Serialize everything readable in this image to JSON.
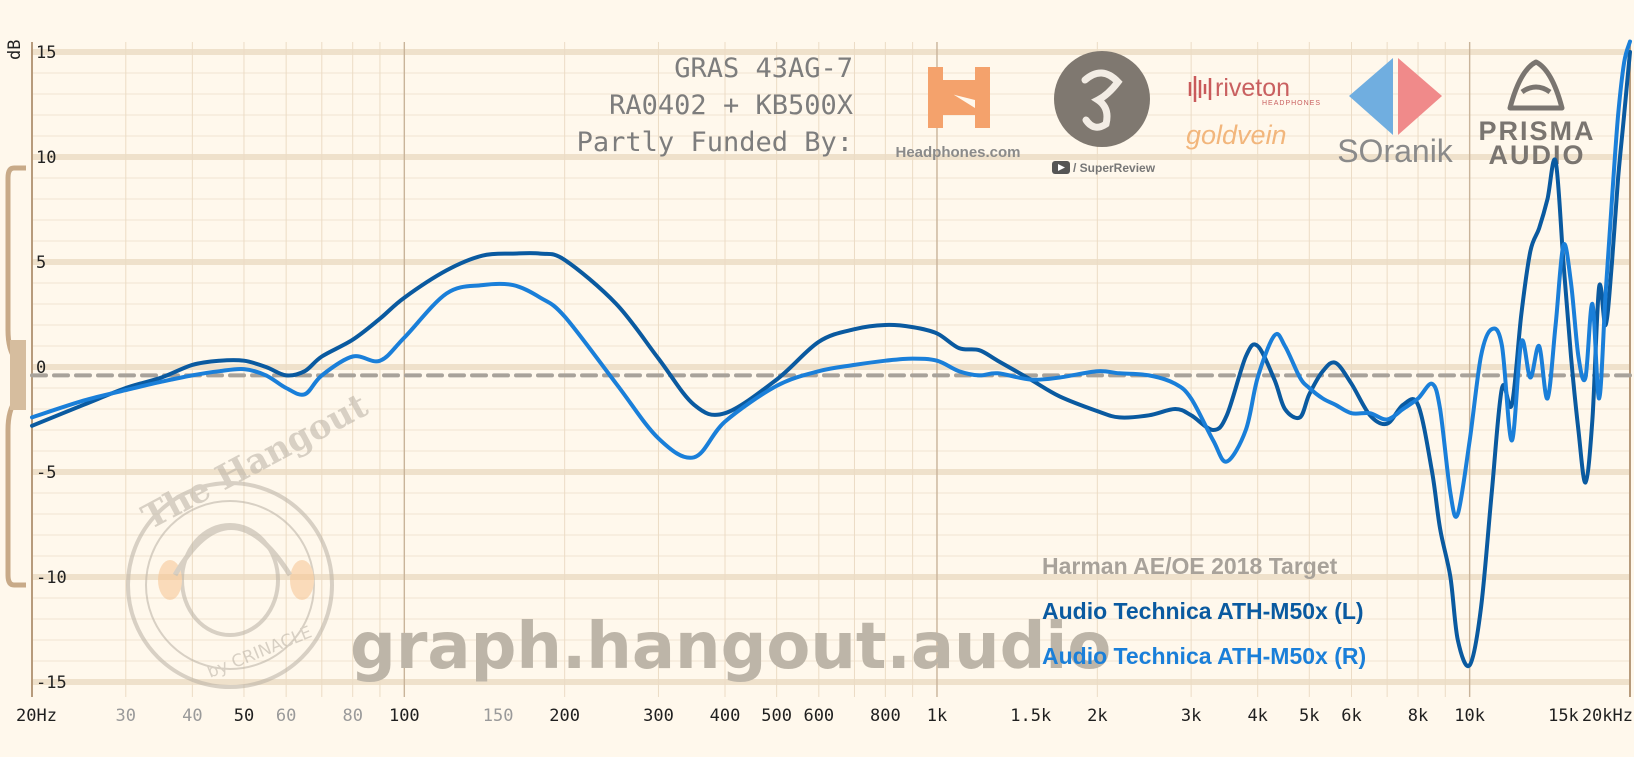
{
  "chart_data": {
    "type": "line",
    "xlabel": "",
    "ylabel": "dB",
    "x_scale": "log",
    "xlim": [
      20,
      20000
    ],
    "ylim": [
      -15,
      15
    ],
    "grid": true,
    "x_ticks": [
      {
        "v": 20,
        "label": "20Hz",
        "minor": false
      },
      {
        "v": 30,
        "label": "30",
        "minor": true
      },
      {
        "v": 40,
        "label": "40",
        "minor": true
      },
      {
        "v": 50,
        "label": "50",
        "minor": false
      },
      {
        "v": 60,
        "label": "60",
        "minor": true
      },
      {
        "v": 80,
        "label": "80",
        "minor": true
      },
      {
        "v": 100,
        "label": "100",
        "minor": false
      },
      {
        "v": 150,
        "label": "150",
        "minor": true
      },
      {
        "v": 200,
        "label": "200",
        "minor": false
      },
      {
        "v": 300,
        "label": "300",
        "minor": false
      },
      {
        "v": 400,
        "label": "400",
        "minor": false
      },
      {
        "v": 500,
        "label": "500",
        "minor": false
      },
      {
        "v": 600,
        "label": "600",
        "minor": false
      },
      {
        "v": 800,
        "label": "800",
        "minor": false
      },
      {
        "v": 1000,
        "label": "1k",
        "minor": false
      },
      {
        "v": 1500,
        "label": "1.5k",
        "minor": false
      },
      {
        "v": 2000,
        "label": "2k",
        "minor": false
      },
      {
        "v": 3000,
        "label": "3k",
        "minor": false
      },
      {
        "v": 4000,
        "label": "4k",
        "minor": false
      },
      {
        "v": 5000,
        "label": "5k",
        "minor": false
      },
      {
        "v": 6000,
        "label": "6k",
        "minor": false
      },
      {
        "v": 8000,
        "label": "8k",
        "minor": false
      },
      {
        "v": 10000,
        "label": "10k",
        "minor": false
      },
      {
        "v": 15000,
        "label": "15k",
        "minor": false
      },
      {
        "v": 20000,
        "label": "20kHz",
        "minor": false
      }
    ],
    "y_ticks": [
      15,
      10,
      5,
      0,
      -5,
      -10,
      -15
    ],
    "series": [
      {
        "name": "Harman AE/OE 2018 Target",
        "color": "#a8a29a",
        "dashed": true,
        "x": [
          20,
          20000
        ],
        "y": [
          -0.4,
          -0.4
        ]
      },
      {
        "name": "Audio Technica ATH-M50x (L)",
        "color": "#0a5aa0",
        "x": [
          20,
          25,
          30,
          35,
          40,
          45,
          50,
          55,
          60,
          65,
          70,
          80,
          90,
          100,
          120,
          140,
          160,
          180,
          200,
          250,
          300,
          350,
          400,
          500,
          600,
          700,
          800,
          900,
          1000,
          1100,
          1200,
          1300,
          1500,
          1700,
          2000,
          2200,
          2500,
          2800,
          3000,
          3300,
          3500,
          3800,
          4000,
          4300,
          4500,
          4800,
          5000,
          5300,
          5600,
          6000,
          6500,
          7000,
          7500,
          8000,
          8500,
          8800,
          9200,
          9500,
          10000,
          10500,
          11000,
          11500,
          12000,
          12500,
          13000,
          13500,
          14000,
          14500,
          15000,
          15500,
          16000,
          16500,
          17000,
          17500,
          18000,
          18500,
          19000,
          19500,
          20000
        ],
        "y": [
          -2.8,
          -1.8,
          -1.0,
          -0.5,
          0.1,
          0.3,
          0.3,
          0.0,
          -0.4,
          -0.2,
          0.5,
          1.3,
          2.3,
          3.3,
          4.6,
          5.3,
          5.4,
          5.4,
          5.1,
          3.0,
          0.4,
          -1.8,
          -2.2,
          -0.6,
          1.2,
          1.8,
          2.0,
          1.9,
          1.6,
          0.9,
          0.8,
          0.3,
          -0.6,
          -1.4,
          -2.1,
          -2.4,
          -2.3,
          -2.0,
          -2.3,
          -3.0,
          -2.3,
          0.5,
          1.0,
          -0.6,
          -2.0,
          -2.4,
          -1.3,
          -0.2,
          0.2,
          -0.8,
          -2.3,
          -2.7,
          -1.8,
          -1.8,
          -5.0,
          -7.7,
          -10.0,
          -13.0,
          -14.2,
          -11.5,
          -6.0,
          -1.0,
          -1.8,
          2.5,
          5.5,
          6.6,
          8.0,
          9.8,
          5.0,
          0.5,
          -3.0,
          -5.5,
          -2.5,
          3.8,
          2.0,
          5.0,
          9.0,
          12.0,
          15.0
        ]
      },
      {
        "name": "Audio Technica ATH-M50x (R)",
        "color": "#1a7fd9",
        "x": [
          20,
          25,
          30,
          35,
          40,
          45,
          50,
          55,
          60,
          65,
          70,
          80,
          90,
          100,
          120,
          140,
          160,
          180,
          200,
          250,
          300,
          350,
          400,
          500,
          600,
          700,
          800,
          900,
          1000,
          1100,
          1200,
          1300,
          1500,
          1700,
          2000,
          2200,
          2500,
          2800,
          3000,
          3300,
          3500,
          3800,
          4000,
          4300,
          4500,
          4800,
          5000,
          5300,
          5600,
          6000,
          6500,
          7000,
          7500,
          8000,
          8500,
          8800,
          9200,
          9500,
          10000,
          10500,
          11000,
          11500,
          12000,
          12500,
          13000,
          13500,
          14000,
          14500,
          15000,
          15500,
          16000,
          16500,
          17000,
          17500,
          18000,
          18500,
          19000,
          19500,
          20000
        ],
        "y": [
          -2.4,
          -1.6,
          -1.1,
          -0.7,
          -0.4,
          -0.2,
          -0.1,
          -0.4,
          -1.0,
          -1.3,
          -0.4,
          0.5,
          0.3,
          1.4,
          3.5,
          3.9,
          3.9,
          3.3,
          2.4,
          -0.8,
          -3.4,
          -4.3,
          -2.6,
          -0.9,
          -0.2,
          0.1,
          0.3,
          0.4,
          0.3,
          -0.2,
          -0.4,
          -0.3,
          -0.6,
          -0.5,
          -0.2,
          -0.3,
          -0.4,
          -0.8,
          -1.5,
          -3.5,
          -4.5,
          -3.0,
          -0.5,
          1.5,
          1.0,
          -0.5,
          -1.0,
          -1.5,
          -1.8,
          -2.2,
          -2.2,
          -2.5,
          -2.0,
          -1.5,
          -0.8,
          -2.0,
          -6.0,
          -7.0,
          -3.5,
          0.5,
          1.8,
          1.0,
          -3.5,
          1.2,
          -0.5,
          1.0,
          -1.5,
          2.0,
          5.8,
          4.0,
          0.5,
          -0.5,
          3.0,
          -1.5,
          3.5,
          8.0,
          12.0,
          14.5,
          15.5
        ]
      }
    ]
  },
  "header": {
    "rig_line1": "GRAS 43AG-7",
    "rig_line2": "RA0402 + KB500X",
    "funded_by": "Partly Funded By:"
  },
  "sponsors": {
    "headphones_com": "Headphones.com",
    "superreview": "/ SuperReview",
    "riveton": "riveton",
    "riveton_sub": "HEADPHONES",
    "goldvein": "goldvein",
    "soranik": "SOranik",
    "prisma_line1": "PRISMA",
    "prisma_line2": "AUDIO"
  },
  "watermark": {
    "site": "graph.hangout.audio",
    "badge_top": "The Hangout",
    "badge_bottom": "by CRINACLE"
  }
}
